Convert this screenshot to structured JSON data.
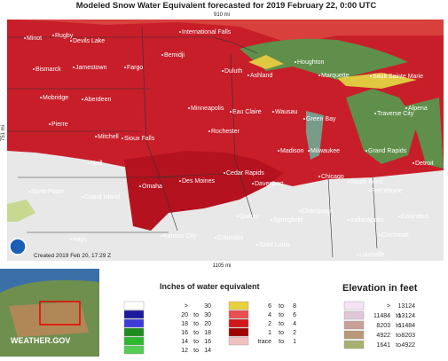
{
  "header": {
    "title": "Modeled Snow Water Equivalent forecasted for 2019 February 22, 0:00 UTC"
  },
  "scale": {
    "top": "910 mi",
    "left": "751 mi",
    "bottom": "1105 mi"
  },
  "created": "Created 2019 Feb 20, 17:29 Z",
  "cities": [
    "Minot",
    "Rugby",
    "Devils Lake",
    "Bismarck",
    "Jamestown",
    "Fargo",
    "International Falls",
    "Bemidji",
    "Duluth",
    "Ashland",
    "Houghton",
    "Marquette",
    "Sault Sainte Marie",
    "Mobridge",
    "Aberdeen",
    "Minneapolis",
    "Eau Claire",
    "Wausau",
    "Green Bay",
    "Traverse City",
    "Alpena",
    "Pierre",
    "Rochester",
    "Mitchell",
    "Sioux Falls",
    "Madison",
    "Milwaukee",
    "Grand Rapids",
    "Detroit",
    "Neill",
    "Cedar Rapids",
    "Des Moines",
    "Davenport",
    "Chicago",
    "South Bend",
    "North Platte",
    "Grand Island",
    "Omaha",
    "Fort Wayne",
    "Champaign",
    "Columbus",
    "Quincy",
    "Springfield",
    "Indianapolis",
    "Hays",
    "Kansas City",
    "Columbia",
    "Saint Louis",
    "Cincinnati",
    "Louisville"
  ],
  "legend": {
    "title": "Inches of water equivalent",
    "left": [
      {
        "cells": [
          ">",
          "30"
        ],
        "color": "#ffffff"
      },
      {
        "cells": [
          "20",
          "to",
          "30"
        ],
        "color": "#1a1a9e"
      },
      {
        "cells": [
          "18",
          "to",
          "20"
        ],
        "color": "#3c3cd8"
      },
      {
        "cells": [
          "16",
          "to",
          "18"
        ],
        "color": "#1f8a1f"
      },
      {
        "cells": [
          "14",
          "to",
          "16"
        ],
        "color": "#2eb82e"
      },
      {
        "cells": [
          "12",
          "to",
          "14"
        ],
        "color": "#55cc55"
      }
    ],
    "right": [
      {
        "cells": [
          "6",
          "to",
          "8"
        ],
        "color": "#e8d040"
      },
      {
        "cells": [
          "4",
          "to",
          "6"
        ],
        "color": "#e85050"
      },
      {
        "cells": [
          "2",
          "to",
          "4"
        ],
        "color": "#d01818"
      },
      {
        "cells": [
          "1",
          "to",
          "2"
        ],
        "color": "#a00000"
      },
      {
        "cells": [
          "trace",
          "to",
          "1"
        ],
        "color": "#f0c0c0"
      }
    ]
  },
  "elevation": {
    "title": "Elevation in feet",
    "rows": [
      {
        "cells": [
          ">",
          "13124"
        ],
        "color": "#f4e4f4"
      },
      {
        "cells": [
          "11484",
          "to",
          "13124"
        ],
        "color": "#e0c8d8"
      },
      {
        "cells": [
          "8203",
          "to",
          "11484"
        ],
        "color": "#c8a098"
      },
      {
        "cells": [
          "4922",
          "to",
          "8203"
        ],
        "color": "#b89878"
      },
      {
        "cells": [
          "1641",
          "to",
          "4922"
        ],
        "color": "#a8b070"
      }
    ]
  },
  "brand": "WEATHER.GOV"
}
